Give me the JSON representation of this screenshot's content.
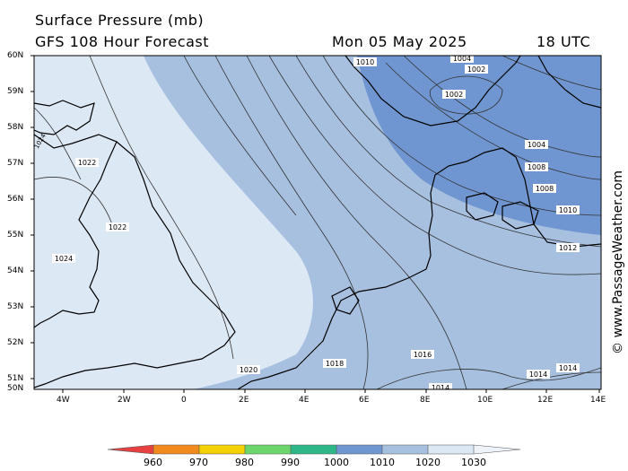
{
  "header": {
    "title": "Surface Pressure (mb)",
    "subtitle": "GFS 108 Hour Forecast",
    "valid_date": "Mon 05 May 2025",
    "valid_time": "18 UTC"
  },
  "credit": "© www.PassageWeather.com",
  "map": {
    "lat_labels": [
      "60N",
      "59N",
      "58N",
      "57N",
      "56N",
      "55N",
      "54N",
      "53N",
      "52N",
      "51N",
      "50N"
    ],
    "lon_labels": [
      "4W",
      "2W",
      "0",
      "2E",
      "4E",
      "6E",
      "8E",
      "10E",
      "12E",
      "14E"
    ],
    "isobar_labels": [
      "1010",
      "1004",
      "1002",
      "1002",
      "1004",
      "1008",
      "1008",
      "1010",
      "1012",
      "1014",
      "1014",
      "1014",
      "1016",
      "1018",
      "1020",
      "1022",
      "1022",
      "1024",
      "1024"
    ]
  },
  "colorbar": {
    "labels": [
      "960",
      "970",
      "980",
      "990",
      "1000",
      "1010",
      "1020",
      "1030"
    ],
    "colors": [
      "#e84040",
      "#f08a1c",
      "#f5d000",
      "#6cd66c",
      "#2eb88a",
      "#6f96d0",
      "#a7c0e0",
      "#dde8f5",
      "#eef3fa"
    ]
  },
  "colors": {
    "land": "#000000",
    "isobar": "#333333",
    "band_1010": "#6f96d0",
    "band_1020": "#a7c0e0",
    "band_1030": "#dde8f5"
  }
}
